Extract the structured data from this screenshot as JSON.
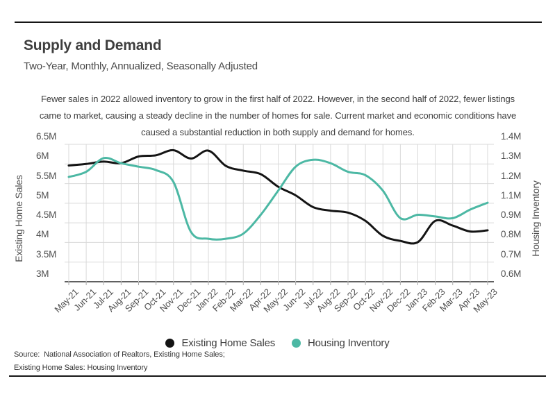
{
  "header": {
    "title": "Supply and Demand",
    "subtitle": "Two-Year, Monthly, Annualized, Seasonally Adjusted"
  },
  "annotation": "Fewer sales in 2022 allowed inventory to grow in the first half of 2022. However, in the second half of 2022, fewer listings came to market, causing a steady decline in the number of homes for sale. Current market and economic conditions have caused a substantial reduction in both supply and demand for homes.",
  "chart_data": {
    "type": "line",
    "x": [
      "May-21",
      "Jun-21",
      "Jul-21",
      "Aug-21",
      "Sep-21",
      "Oct-21",
      "Nov-21",
      "Dec-21",
      "Jan-22",
      "Feb-22",
      "Mar-22",
      "Apr-22",
      "May-22",
      "Jun-22",
      "Jul-22",
      "Aug-22",
      "Sep-22",
      "Oct-22",
      "Nov-22",
      "Dec-22",
      "Jan-23",
      "Feb-23",
      "Mar-23",
      "Apr-23",
      "May-23"
    ],
    "series": [
      {
        "name": "Existing Home Sales",
        "axis": "left",
        "color": "#141414",
        "values": [
          5.96,
          6.0,
          6.06,
          6.02,
          6.19,
          6.22,
          6.35,
          6.14,
          6.34,
          5.95,
          5.83,
          5.74,
          5.42,
          5.2,
          4.9,
          4.81,
          4.76,
          4.55,
          4.17,
          4.04,
          4.01,
          4.55,
          4.43,
          4.28,
          4.31
        ]
      },
      {
        "name": "Housing Inventory",
        "axis": "right",
        "color": "#4cb8a4",
        "values": [
          1.21,
          1.24,
          1.32,
          1.29,
          1.27,
          1.25,
          1.18,
          0.89,
          0.85,
          0.85,
          0.88,
          0.99,
          1.13,
          1.27,
          1.31,
          1.29,
          1.24,
          1.22,
          1.13,
          0.97,
          0.99,
          0.98,
          0.97,
          1.02,
          1.06
        ]
      }
    ],
    "left_axis": {
      "title": "Existing Home Sales",
      "tick_labels": [
        "6.5M",
        "6M",
        "5.5M",
        "5M",
        "4.5M",
        "4M",
        "3.5M",
        "3M"
      ],
      "min": 3.0,
      "max": 6.5
    },
    "right_axis": {
      "title": "Housing Inventory",
      "tick_labels": [
        "1.4M",
        "1.3M",
        "1.2M",
        "1.1M",
        "0.9M",
        "0.8M",
        "0.7M",
        "0.6M"
      ],
      "min": 0.6,
      "max": 1.4
    },
    "grid": true,
    "legend_position": "bottom",
    "title": "Supply and Demand",
    "subtitle": "Two-Year, Monthly, Annualized, Seasonally Adjusted"
  },
  "legend": [
    {
      "label": "Existing Home Sales",
      "color": "#141414"
    },
    {
      "label": "Housing Inventory",
      "color": "#4cb8a4"
    }
  ],
  "source": {
    "line1": "Source:  National Association of Realtors, Existing Home Sales;",
    "line2": "Existing Home Sales: Housing Inventory"
  },
  "colors": {
    "gridline": "#d9d9d9",
    "axis_line": "#2b2b2b",
    "tick_stub": "#aaaaaa",
    "rule": "#161616"
  }
}
